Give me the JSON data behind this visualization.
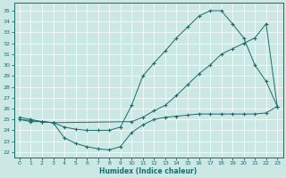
{
  "xlabel": "Humidex (Indice chaleur)",
  "xlim": [
    -0.5,
    23.5
  ],
  "ylim": [
    21.5,
    35.7
  ],
  "xticks": [
    0,
    1,
    2,
    3,
    4,
    5,
    6,
    7,
    8,
    9,
    10,
    11,
    12,
    13,
    14,
    15,
    16,
    17,
    18,
    19,
    20,
    21,
    22,
    23
  ],
  "yticks": [
    22,
    23,
    24,
    25,
    26,
    27,
    28,
    29,
    30,
    31,
    32,
    33,
    34,
    35
  ],
  "bg_color": "#cce8e5",
  "line_color": "#1a6b6b",
  "curve1_x": [
    0,
    1,
    2,
    3,
    4,
    5,
    6,
    7,
    8,
    9,
    10,
    11,
    12,
    13,
    14,
    15,
    16,
    17,
    18,
    19,
    20,
    21,
    22,
    23
  ],
  "curve1_y": [
    25.0,
    24.8,
    24.8,
    24.7,
    24.3,
    24.1,
    24.0,
    24.0,
    24.0,
    24.3,
    26.3,
    29.0,
    30.2,
    31.3,
    32.5,
    33.5,
    34.5,
    35.0,
    35.0,
    33.8,
    32.5,
    30.0,
    28.5,
    26.2
  ],
  "curve2_x": [
    0,
    2,
    3,
    10,
    11,
    12,
    13,
    14,
    15,
    16,
    17,
    18,
    19,
    20,
    21,
    22,
    23
  ],
  "curve2_y": [
    25.0,
    24.8,
    24.7,
    24.8,
    25.2,
    25.8,
    26.3,
    27.2,
    28.2,
    29.2,
    30.0,
    31.0,
    31.5,
    32.0,
    32.5,
    33.8,
    26.2
  ],
  "curve3_x": [
    0,
    1,
    2,
    3,
    4,
    5,
    6,
    7,
    8,
    9,
    10,
    11,
    12,
    13,
    14,
    15,
    16,
    17,
    18,
    19,
    20,
    21,
    22,
    23
  ],
  "curve3_y": [
    25.2,
    25.0,
    24.8,
    24.7,
    23.3,
    22.8,
    22.5,
    22.3,
    22.2,
    22.5,
    23.8,
    24.5,
    25.0,
    25.2,
    25.3,
    25.4,
    25.5,
    25.5,
    25.5,
    25.5,
    25.5,
    25.5,
    25.6,
    26.2
  ]
}
